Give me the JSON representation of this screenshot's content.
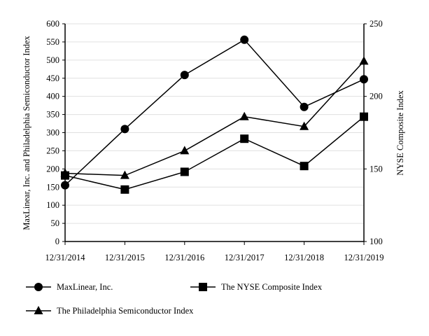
{
  "chart_data": {
    "type": "line",
    "categories": [
      "12/31/2014",
      "12/31/2015",
      "12/31/2016",
      "12/31/2017",
      "12/31/2018",
      "12/31/2019"
    ],
    "y_left": {
      "label": "MaxLinear, Inc. and Philadelphia Semiconductor Index",
      "range": [
        0,
        600
      ],
      "ticks": [
        0,
        50,
        100,
        150,
        200,
        250,
        300,
        350,
        400,
        450,
        500,
        550,
        600
      ]
    },
    "y_right": {
      "label": "NYSE Composite Index",
      "range": [
        100,
        250
      ],
      "ticks": [
        100,
        150,
        200,
        250
      ]
    },
    "grid": true,
    "legend_position": "bottom",
    "series": [
      {
        "name": "MaxLinear, Inc.",
        "axis": "left",
        "marker": "circle",
        "values": [
          155,
          310,
          459,
          556,
          371,
          447
        ]
      },
      {
        "name": "The NYSE Composite Index",
        "axis": "right",
        "marker": "square",
        "values": [
          145.5,
          135.8,
          148,
          170.8,
          152,
          186
        ]
      },
      {
        "name": "The Philadelphia Semiconductor Index",
        "axis": "left",
        "marker": "triangle",
        "values": [
          188,
          182,
          250,
          344,
          317,
          497
        ]
      }
    ],
    "color": "#000000",
    "grid_color": "#e0e0e0"
  }
}
